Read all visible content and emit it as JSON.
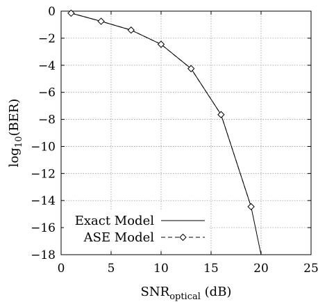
{
  "chart_data": {
    "type": "line",
    "xlabel": {
      "base": "SNR",
      "sub": "optical",
      "suffix": " (dB)"
    },
    "ylabel": {
      "base": "log",
      "sub": "10",
      "suffix": "(BER)"
    },
    "xlim": [
      0,
      25
    ],
    "ylim": [
      -18,
      0
    ],
    "xticks": [
      0,
      5,
      10,
      15,
      20,
      25
    ],
    "yticks": [
      0,
      -2,
      -4,
      -6,
      -8,
      -10,
      -12,
      -14,
      -16,
      -18
    ],
    "grid": true,
    "legend_position": "bottom-left",
    "series": [
      {
        "name": "Exact Model",
        "style": "solid",
        "marker": "none",
        "x": [
          1,
          4,
          7,
          10,
          13,
          16,
          19,
          20
        ],
        "y": [
          -0.15,
          -0.75,
          -1.4,
          -2.45,
          -4.25,
          -7.65,
          -14.45,
          -18
        ]
      },
      {
        "name": "ASE Model",
        "style": "dashed",
        "marker": "diamond",
        "x": [
          1,
          4,
          7,
          10,
          13,
          16,
          19
        ],
        "y": [
          -0.15,
          -0.75,
          -1.4,
          -2.45,
          -4.25,
          -7.65,
          -14.45
        ]
      }
    ]
  },
  "colors": {
    "line": "#000000",
    "grid": "#9a9a9a"
  }
}
